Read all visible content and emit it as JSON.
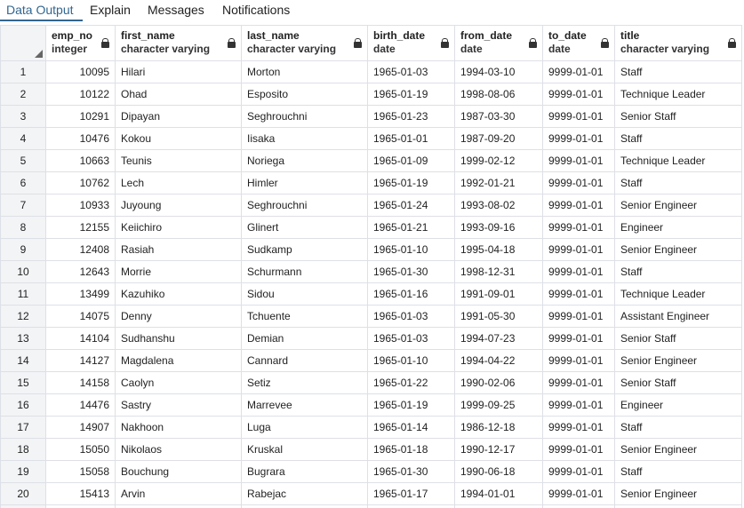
{
  "tabs": [
    {
      "label": "Data Output",
      "active": true
    },
    {
      "label": "Explain",
      "active": false
    },
    {
      "label": "Messages",
      "active": false
    },
    {
      "label": "Notifications",
      "active": false
    }
  ],
  "columns": [
    {
      "name": "emp_no",
      "type": "integer"
    },
    {
      "name": "first_name",
      "type": "character varying"
    },
    {
      "name": "last_name",
      "type": "character varying"
    },
    {
      "name": "birth_date",
      "type": "date"
    },
    {
      "name": "from_date",
      "type": "date"
    },
    {
      "name": "to_date",
      "type": "date"
    },
    {
      "name": "title",
      "type": "character varying"
    }
  ],
  "rows": [
    [
      "1",
      "10095",
      "Hilari",
      "Morton",
      "1965-01-03",
      "1994-03-10",
      "9999-01-01",
      "Staff"
    ],
    [
      "2",
      "10122",
      "Ohad",
      "Esposito",
      "1965-01-19",
      "1998-08-06",
      "9999-01-01",
      "Technique Leader"
    ],
    [
      "3",
      "10291",
      "Dipayan",
      "Seghrouchni",
      "1965-01-23",
      "1987-03-30",
      "9999-01-01",
      "Senior Staff"
    ],
    [
      "4",
      "10476",
      "Kokou",
      "Iisaka",
      "1965-01-01",
      "1987-09-20",
      "9999-01-01",
      "Staff"
    ],
    [
      "5",
      "10663",
      "Teunis",
      "Noriega",
      "1965-01-09",
      "1999-02-12",
      "9999-01-01",
      "Technique Leader"
    ],
    [
      "6",
      "10762",
      "Lech",
      "Himler",
      "1965-01-19",
      "1992-01-21",
      "9999-01-01",
      "Staff"
    ],
    [
      "7",
      "10933",
      "Juyoung",
      "Seghrouchni",
      "1965-01-24",
      "1993-08-02",
      "9999-01-01",
      "Senior Engineer"
    ],
    [
      "8",
      "12155",
      "Keiichiro",
      "Glinert",
      "1965-01-21",
      "1993-09-16",
      "9999-01-01",
      "Engineer"
    ],
    [
      "9",
      "12408",
      "Rasiah",
      "Sudkamp",
      "1965-01-10",
      "1995-04-18",
      "9999-01-01",
      "Senior Engineer"
    ],
    [
      "10",
      "12643",
      "Morrie",
      "Schurmann",
      "1965-01-30",
      "1998-12-31",
      "9999-01-01",
      "Staff"
    ],
    [
      "11",
      "13499",
      "Kazuhiko",
      "Sidou",
      "1965-01-16",
      "1991-09-01",
      "9999-01-01",
      "Technique Leader"
    ],
    [
      "12",
      "14075",
      "Denny",
      "Tchuente",
      "1965-01-03",
      "1991-05-30",
      "9999-01-01",
      "Assistant Engineer"
    ],
    [
      "13",
      "14104",
      "Sudhanshu",
      "Demian",
      "1965-01-03",
      "1994-07-23",
      "9999-01-01",
      "Senior Staff"
    ],
    [
      "14",
      "14127",
      "Magdalena",
      "Cannard",
      "1965-01-10",
      "1994-04-22",
      "9999-01-01",
      "Senior Engineer"
    ],
    [
      "15",
      "14158",
      "Caolyn",
      "Setiz",
      "1965-01-22",
      "1990-02-06",
      "9999-01-01",
      "Senior Staff"
    ],
    [
      "16",
      "14476",
      "Sastry",
      "Marrevee",
      "1965-01-19",
      "1999-09-25",
      "9999-01-01",
      "Engineer"
    ],
    [
      "17",
      "14907",
      "Nakhoon",
      "Luga",
      "1965-01-14",
      "1986-12-18",
      "9999-01-01",
      "Staff"
    ],
    [
      "18",
      "15050",
      "Nikolaos",
      "Kruskal",
      "1965-01-18",
      "1990-12-17",
      "9999-01-01",
      "Senior Engineer"
    ],
    [
      "19",
      "15058",
      "Bouchung",
      "Bugrara",
      "1965-01-30",
      "1990-06-18",
      "9999-01-01",
      "Staff"
    ],
    [
      "20",
      "15413",
      "Arvin",
      "Rabejac",
      "1965-01-17",
      "1994-01-01",
      "9999-01-01",
      "Senior Engineer"
    ]
  ],
  "colors": {
    "accent": "#326690",
    "grid_line": "#dde0e6",
    "row_header_bg": "#f3f4f6"
  },
  "icons": {
    "column_lock": "lock-icon",
    "corner": "sort-triangle-icon"
  }
}
